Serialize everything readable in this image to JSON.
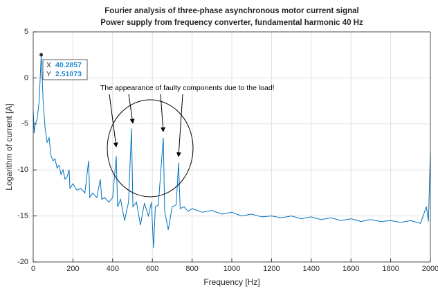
{
  "chart_data": {
    "type": "line",
    "title": "Fourier analysis of three-phase asynchronous motor current signal",
    "subtitle": "Power supply from frequency converter, fundamental harmonic 40 Hz",
    "x_label": "Frequency [Hz]",
    "y_label": "Logarithm of current [A]",
    "annotation": "The appearance of faulty components due to the load!",
    "datatip": {
      "x_label": "X",
      "x": 40.2857,
      "y_label": "Y",
      "y": 2.51073
    },
    "color": "#0072bd",
    "grid": true,
    "xlim": [
      0,
      2000
    ],
    "ylim": [
      -20,
      5
    ],
    "xticks": [
      0,
      200,
      400,
      600,
      800,
      1000,
      1200,
      1400,
      1600,
      1800,
      2000
    ],
    "yticks": [
      -20,
      -15,
      -10,
      -5,
      0,
      5
    ],
    "x": [
      0,
      5,
      10,
      20,
      30,
      40.2857,
      50,
      60,
      70,
      80,
      90,
      100,
      110,
      120,
      130,
      140,
      150,
      160,
      170,
      181,
      185,
      200,
      220,
      240,
      260,
      279,
      285,
      300,
      320,
      338,
      345,
      360,
      380,
      400,
      418,
      425,
      440,
      460,
      480,
      495,
      502,
      520,
      540,
      560,
      580,
      595,
      606,
      615,
      630,
      655,
      662,
      680,
      700,
      720,
      732,
      740,
      760,
      780,
      800,
      850,
      900,
      950,
      1000,
      1050,
      1100,
      1150,
      1200,
      1250,
      1300,
      1350,
      1400,
      1450,
      1500,
      1550,
      1600,
      1650,
      1700,
      1750,
      1800,
      1850,
      1900,
      1950,
      1980,
      1990,
      2000
    ],
    "values": [
      -3.6,
      -6,
      -5,
      -4.5,
      -2.5,
      2.51073,
      -2.5,
      -5.5,
      -7,
      -6.5,
      -8.5,
      -9,
      -8.8,
      -9.8,
      -9.5,
      -10.5,
      -10,
      -11,
      -10.8,
      -10,
      -12,
      -11.5,
      -12.2,
      -12,
      -12.5,
      -9,
      -13,
      -12.5,
      -13,
      -11,
      -13.2,
      -13,
      -13.5,
      -13,
      -8.5,
      -14,
      -13.2,
      -15.5,
      -13.5,
      -5.5,
      -14,
      -13.5,
      -16,
      -13.6,
      -15,
      -13.5,
      -18.5,
      -14,
      -13.8,
      -6.5,
      -14.5,
      -16.5,
      -14,
      -13.8,
      -9.2,
      -14.2,
      -14,
      -14.5,
      -14.2,
      -14.6,
      -14.4,
      -14.8,
      -14.6,
      -15,
      -14.8,
      -15.1,
      -15,
      -15.2,
      -15,
      -15.3,
      -15.1,
      -15.4,
      -15.2,
      -15.5,
      -15.3,
      -15.6,
      -15.4,
      -15.6,
      -15.5,
      -15.7,
      -15.5,
      -15.8,
      -14,
      -15.6,
      -8
    ]
  }
}
